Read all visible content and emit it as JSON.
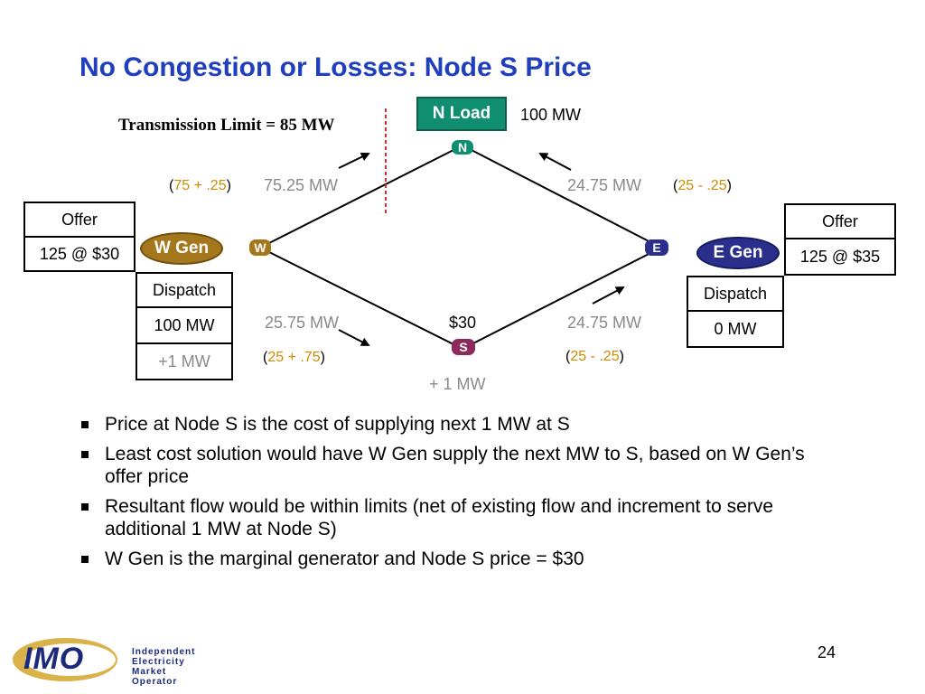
{
  "title": "No Congestion or Losses: Node S Price",
  "transmission_limit": "Transmission Limit = 85 MW",
  "n_load": {
    "label": "N Load",
    "value": "100 MW"
  },
  "nodes": {
    "n": "N",
    "w": "W",
    "e": "E",
    "s": "S"
  },
  "flows": {
    "wn": {
      "value": "75.25 MW",
      "paren_open": "(",
      "base": "75 + .25",
      "paren_close": ")"
    },
    "ne": {
      "value": "24.75 MW",
      "paren_open": "(",
      "base": "25 - .25",
      "paren_close": ")"
    },
    "ws": {
      "value": "25.75 MW",
      "paren_open": "(",
      "base": "25 + .75",
      "paren_close": ")"
    },
    "se": {
      "value": "24.75 MW",
      "paren_open": "(",
      "base": "25 - .25",
      "paren_close": ")"
    }
  },
  "node_s": {
    "price": "$30",
    "increment": "+ 1 MW"
  },
  "w_gen": {
    "label": "W Gen",
    "offer_header": "Offer",
    "offer": "125 @ $30",
    "dispatch_header": "Dispatch",
    "dispatch": "100 MW",
    "increment": "+1 MW"
  },
  "e_gen": {
    "label": "E Gen",
    "offer_header": "Offer",
    "offer": "125 @ $35",
    "dispatch_header": "Dispatch",
    "dispatch": "0 MW"
  },
  "bullets": [
    "Price at Node S is the cost of supplying next 1 MW at S",
    "Least cost solution would have W Gen supply the next MW to S, based on W Gen’s offer price",
    "Resultant flow would be within limits (net of existing flow and increment to serve additional 1 MW at Node S)",
    "W Gen is the marginal generator and Node S price = $30"
  ],
  "page_number": "24",
  "logo": {
    "mark": "IMO",
    "line1": "Independent",
    "line2": "Electricity",
    "line3": "Market Operator"
  },
  "colors": {
    "title": "#1f3fbf",
    "n_load": "#0f8f70",
    "w_gen": "#a5771c",
    "e_gen": "#2a2f8c",
    "node_s": "#8c2a5c",
    "limit_line": "#d03030",
    "base_flow": "#d18b00"
  }
}
